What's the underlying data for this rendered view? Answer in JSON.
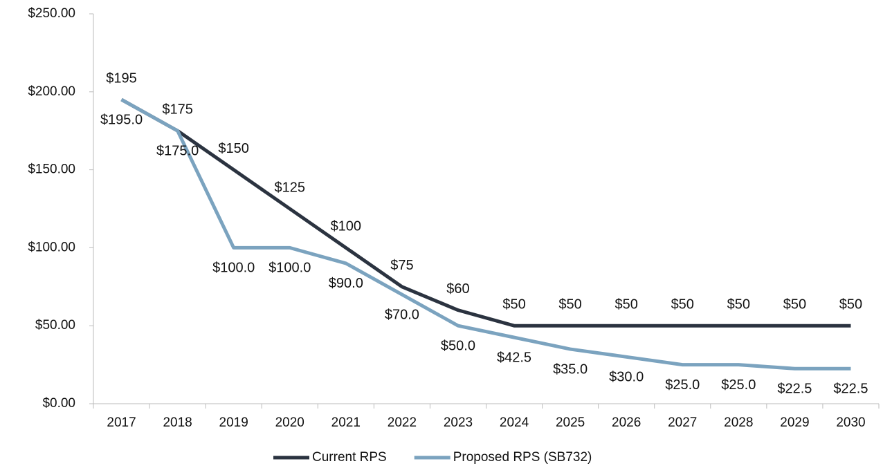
{
  "chart_data": {
    "type": "line",
    "categories": [
      "2017",
      "2018",
      "2019",
      "2020",
      "2021",
      "2022",
      "2023",
      "2024",
      "2025",
      "2026",
      "2027",
      "2028",
      "2029",
      "2030"
    ],
    "series": [
      {
        "name": "Current RPS",
        "color": "#2b3340",
        "values": [
          195,
          175,
          150,
          125,
          100,
          75,
          60,
          50,
          50,
          50,
          50,
          50,
          50,
          50
        ],
        "value_labels": [
          "$195",
          "$175",
          "$150",
          "$125",
          "$100",
          "$75",
          "$60",
          "$50",
          "$50",
          "$50",
          "$50",
          "$50",
          "$50",
          "$50"
        ]
      },
      {
        "name": "Proposed RPS (SB732)",
        "color": "#7ba3bf",
        "values": [
          195,
          175,
          100,
          100,
          90,
          70,
          50,
          42.5,
          35,
          30,
          25,
          25,
          22.5,
          22.5
        ],
        "value_labels": [
          "$195.0",
          "$175.0",
          "$100.0",
          "$100.0",
          "$90.0",
          "$70.0",
          "$50.0",
          "$42.5",
          "$35.0",
          "$30.0",
          "$25.0",
          "$25.0",
          "$22.5",
          "$22.5"
        ]
      }
    ],
    "ylim": [
      0,
      250
    ],
    "yticks": [
      {
        "value": 0,
        "label": "$0.00"
      },
      {
        "value": 50,
        "label": "$50.00"
      },
      {
        "value": 100,
        "label": "$100.00"
      },
      {
        "value": 150,
        "label": "$150.00"
      },
      {
        "value": 200,
        "label": "$200.00"
      },
      {
        "value": 250,
        "label": "$250.00"
      }
    ],
    "legend": "bottom"
  }
}
